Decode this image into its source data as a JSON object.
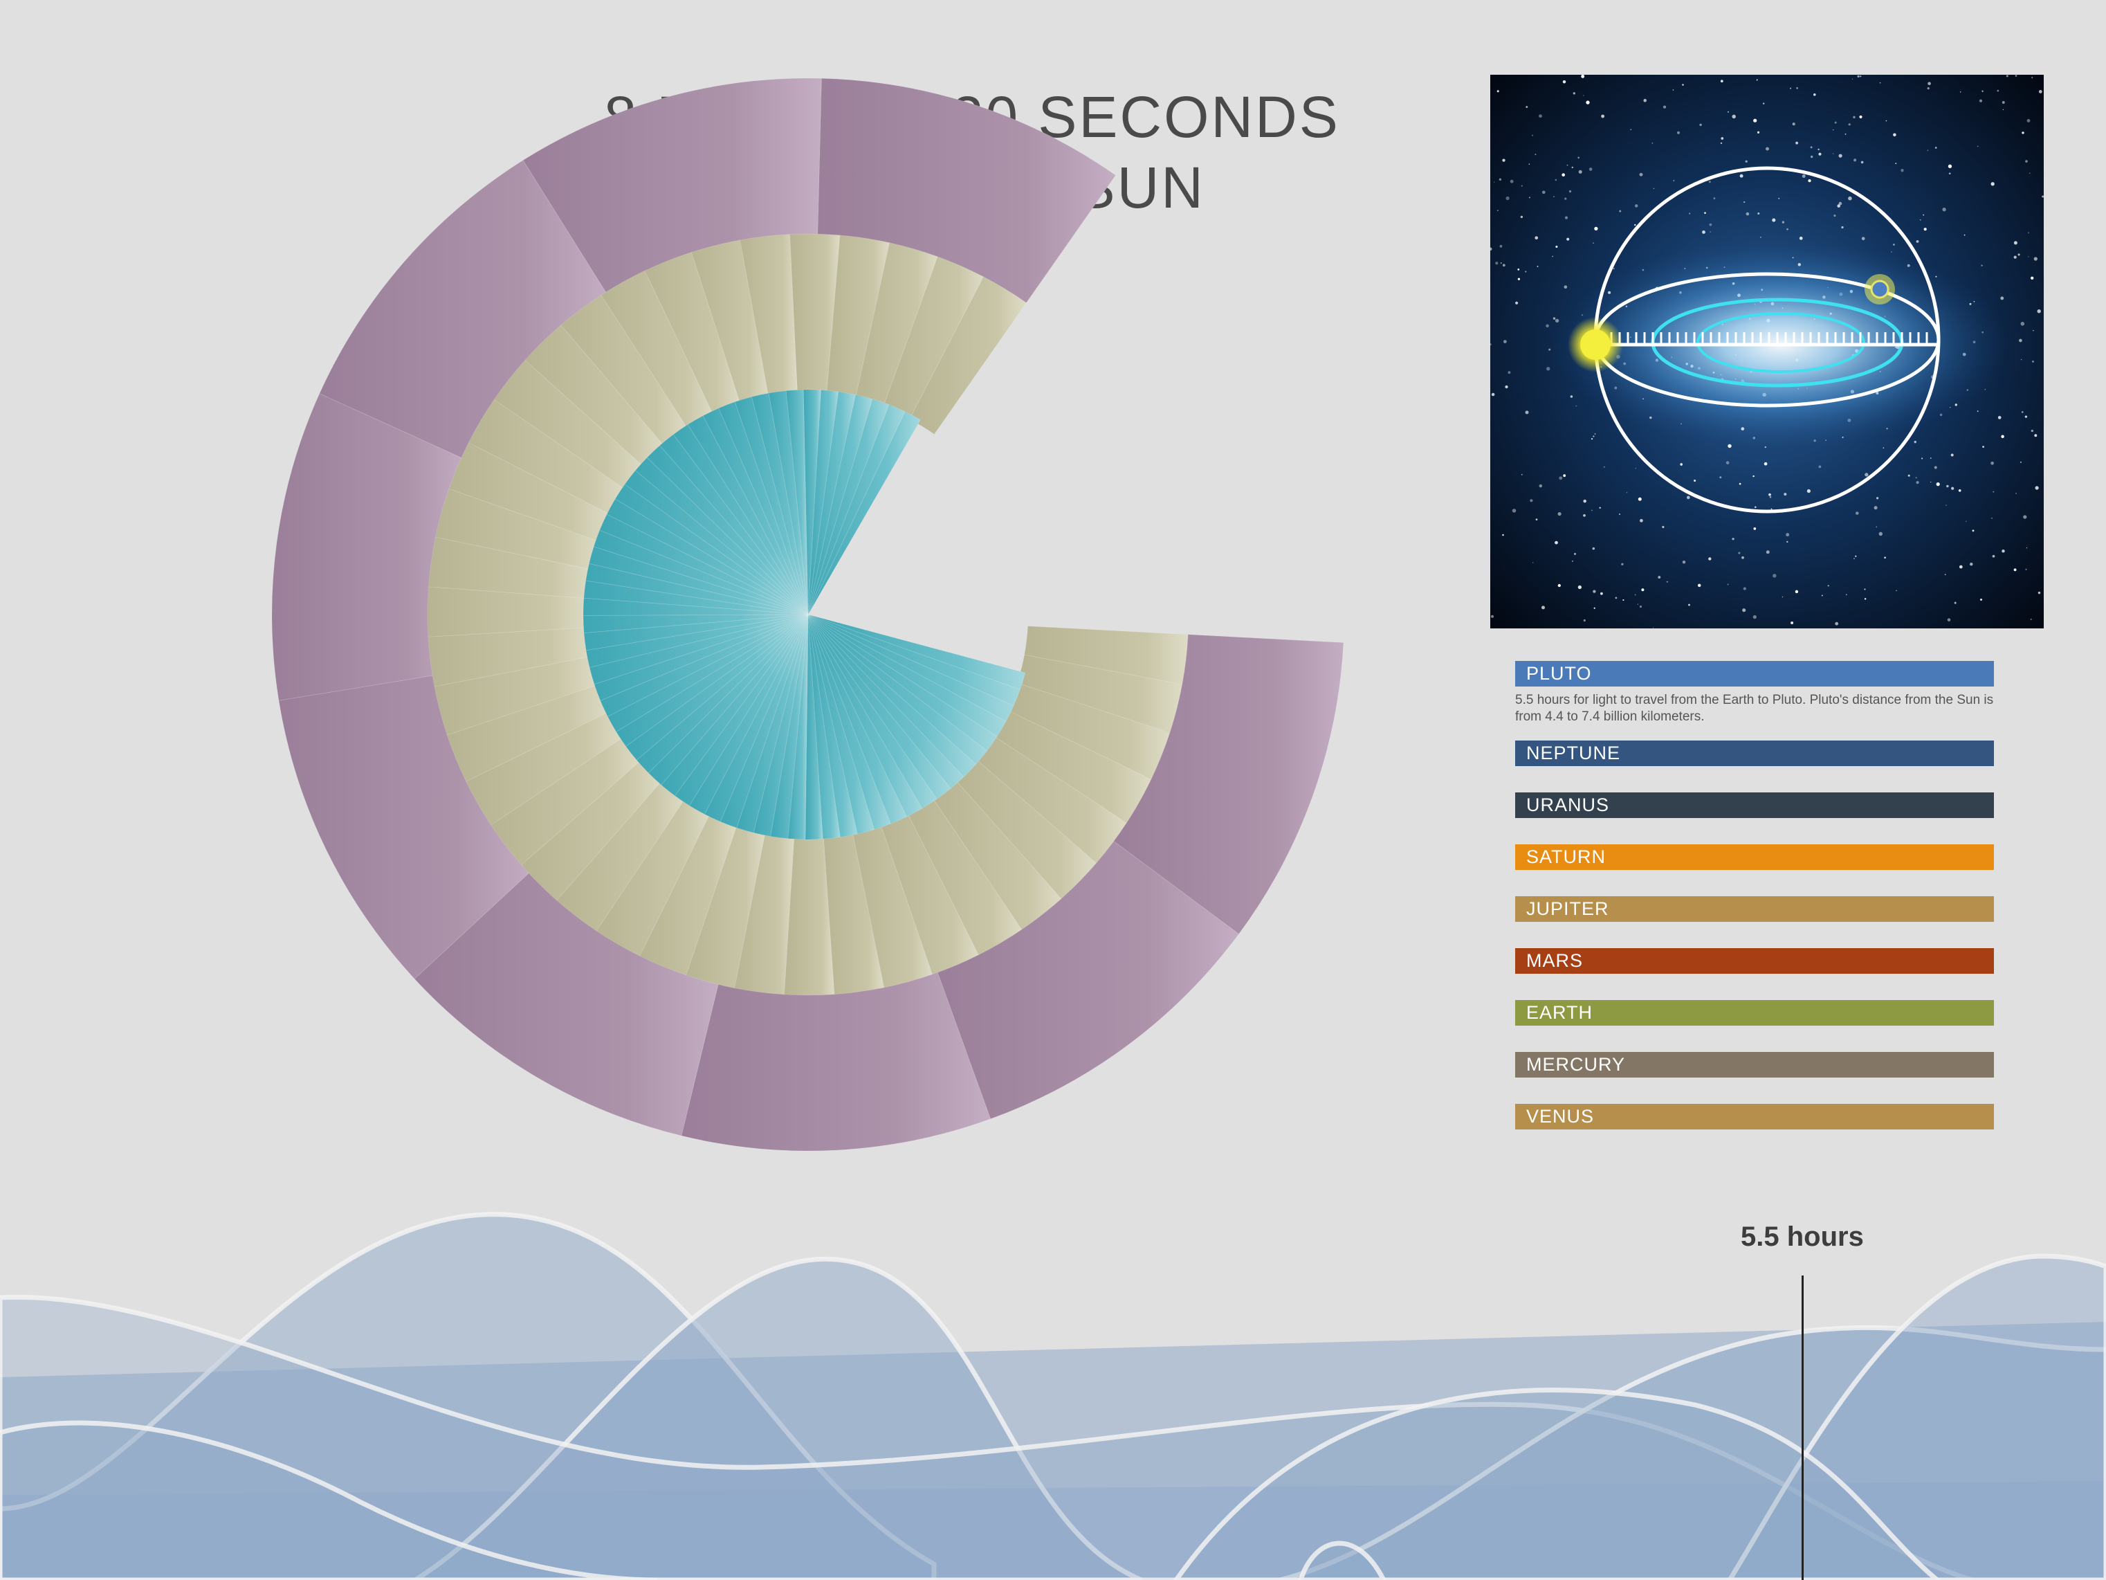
{
  "title": {
    "line1": "8 MINUTES  20 SECONDS",
    "line2": "FROM THE SUN"
  },
  "colors": {
    "background": "#e0e0e0",
    "inner_ring": "#4fb0bd",
    "middle_ring": "#c4c1a1",
    "outer_ring": "#a68aa4",
    "wave_fill": "#8fa9c9",
    "wave_line": "#f2f2f2"
  },
  "chart_data": {
    "type": "radial",
    "rings": [
      {
        "name": "inner",
        "segments": 64,
        "start_deg": -15,
        "sweep_deg": 285,
        "color": "#4fb0bd"
      },
      {
        "name": "middle",
        "segments": 40,
        "start_deg": -3,
        "sweep_deg": 302,
        "color": "#c4c1a1"
      },
      {
        "name": "outer",
        "segments": 9,
        "start_deg": -3,
        "sweep_deg": 302,
        "color": "#a68aa4"
      }
    ]
  },
  "legend": {
    "items": [
      {
        "label": "PLUTO",
        "color": "#4a7ab8",
        "description": "5.5 hours for light to travel from the Earth to Pluto. Pluto's distance from the Sun is from 4.4 to 7.4 billion kilometers."
      },
      {
        "label": "NEPTUNE",
        "color": "#33557f",
        "description": ""
      },
      {
        "label": "URANUS",
        "color": "#33414f",
        "description": ""
      },
      {
        "label": "SATURN",
        "color": "#e98c12",
        "description": ""
      },
      {
        "label": "JUPITER",
        "color": "#b78f4c",
        "description": ""
      },
      {
        "label": "MARS",
        "color": "#a63f14",
        "description": ""
      },
      {
        "label": "EARTH",
        "color": "#8d9a42",
        "description": ""
      },
      {
        "label": "MERCURY",
        "color": "#847664",
        "description": ""
      },
      {
        "label": "VENUS",
        "color": "#b78f4c",
        "description": ""
      }
    ]
  },
  "marker": {
    "label": "5.5 hours"
  },
  "image": {
    "icon": "galaxy-orbit-icon"
  }
}
